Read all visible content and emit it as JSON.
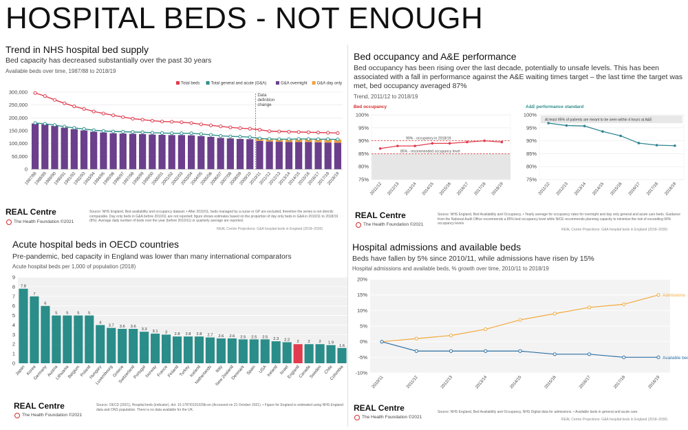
{
  "main_title": "HOSPITAL BEDS - NOT ENOUGH",
  "panels": {
    "beds": {
      "title": "Trend in NHS hospital bed supply",
      "subtitle": "Bed capacity has decreased substantially over the past 30 years",
      "note": "Available beds over time, 1987/88 to 2018/19",
      "brand": "REAL Centre",
      "brand_sub": "The Health Foundation ©2021",
      "source": "Source: NHS England, Bed availability and occupancy dataset. • After 2010/11, beds managed by a nurse or GP are excluded, therefore the series is not directly comparable. Day only beds in G&A before 2010/11 are not reported; figure shows estimates based on the proportion of day only beds in G&A in 2010/11 to 2018/19 (8%). Average daily number of beds over the year (before 2010/11) or quarterly average are reported.",
      "projections": "REAL Centre Projections: G&A hospital beds in England (2018–2030)"
    },
    "occupancy": {
      "title": "Bed occupancy and A&E performance",
      "subtitle": "Bed occupancy has been rising over the last decade, potentially to unsafe levels. This has been associated with a fall in performance against the A&E waiting times target – the last time the target was met, bed occupancy averaged 87%",
      "note": "Trend, 2011/12 to 2018/19",
      "brand": "REAL Centre",
      "brand_sub": "The Health Foundation ©2021",
      "source": "Source: NHS England, Bed Availability and Occupancy. • Yearly average for occupancy rates for overnight and day only general and acute care beds. Guidance from the National Audit Office recommends a 85% bed occupancy level while NICE recommends planning capacity to minimise the risk of exceeding 90% occupancy levels",
      "projections": "REAL Centre Projections: G&A hospital beds in England (2018–2030)"
    },
    "oecd": {
      "title": "Acute hospital beds in OECD countries",
      "subtitle": "Pre-pandemic, bed capacity in England was lower than many international comparators",
      "note": "Acute hospital beds per 1,000 of population (2018)",
      "brand": "REAL Centre",
      "brand_sub": "The Health Foundation ©2021",
      "source": "Source: OECD (2021), Hospital beds (indicator). doi: 10.1787/0191329b-en (Accessed on 21 October 2021). • Figure for England is estimated using NHS England data and ONS population. There is no data available for the UK.",
      "projections": ""
    },
    "admissions": {
      "title": "Hospital admissions and available beds",
      "subtitle": "Beds have fallen by 5% since 2010/11, while admissions have risen by 15%",
      "note": "Hospital admissions and available beds, % growth over time, 2010/11 to 2018/19",
      "brand": "REAL Centre",
      "brand_sub": "The Health Foundation ©2021",
      "source": "Source: NHS England, Bed Availability and Occupancy, NHS Digital data for admissions. • Available beds in general and acute care.",
      "projections": "REAL Centre Projections: G&A hospital beds in England (2018–2030)"
    }
  },
  "chart_data": [
    {
      "id": "beds-chart",
      "type": "bar+line",
      "categories": [
        "1987/88",
        "1988/89",
        "1989/90",
        "1990/91",
        "1991/92",
        "1992/93",
        "1993/94",
        "1994/95",
        "1995/96",
        "1996/97",
        "1997/98",
        "1998/99",
        "1999/00",
        "2000/01",
        "2001/02",
        "2002/03",
        "2003/04",
        "2004/05",
        "2005/06",
        "2006/07",
        "2007/08",
        "2008/09",
        "2009/10",
        "2010/11",
        "2011/12",
        "2012/13",
        "2013/14",
        "2014/15",
        "2015/16",
        "2016/17",
        "2017/18",
        "2018/19"
      ],
      "series": [
        {
          "name": "Total beds",
          "kind": "line",
          "color": "#e03c4e",
          "values": [
            297000,
            285000,
            270000,
            257000,
            245000,
            235000,
            225000,
            217000,
            210000,
            203000,
            197000,
            193000,
            189000,
            186000,
            185000,
            183000,
            180000,
            175000,
            171000,
            167000,
            163000,
            160000,
            158000,
            154000,
            148000,
            147000,
            146000,
            145000,
            144000,
            143000,
            142000,
            141000
          ]
        },
        {
          "name": "Total general and acute (G&A)",
          "kind": "line",
          "color": "#2d8f8a",
          "values": [
            180000,
            177000,
            172000,
            166000,
            161000,
            157000,
            152000,
            149000,
            147000,
            146000,
            145000,
            144000,
            142000,
            141000,
            140000,
            140000,
            140000,
            137000,
            134000,
            130000,
            128000,
            127000,
            125000,
            120000,
            118000,
            117000,
            117000,
            118000,
            118000,
            117000,
            117000,
            116000
          ]
        },
        {
          "name": "G&A overnight",
          "kind": "bar",
          "color": "#6b3f8c",
          "values": [
            178000,
            175000,
            169000,
            162000,
            156000,
            151000,
            146000,
            143000,
            140000,
            139000,
            138000,
            137000,
            135000,
            134000,
            133000,
            133000,
            132000,
            129000,
            126000,
            122000,
            120000,
            118000,
            117000,
            110000,
            108000,
            107000,
            106000,
            106000,
            106000,
            105000,
            104000,
            103000
          ]
        },
        {
          "name": "G&A day only",
          "kind": "bar",
          "color": "#f2a03d",
          "values": [
            0,
            0,
            0,
            0,
            0,
            0,
            0,
            0,
            0,
            0,
            0,
            0,
            0,
            0,
            0,
            0,
            0,
            0,
            0,
            0,
            0,
            0,
            0,
            10000,
            10000,
            10000,
            11000,
            12000,
            12000,
            12000,
            13000,
            13000
          ]
        }
      ],
      "ylim": [
        0,
        300000
      ],
      "yticks": [
        "300,000",
        "250,000",
        "200,000",
        "150,000",
        "100,000",
        "50,000",
        "0"
      ],
      "annotation": "Data definition change",
      "annotation_at": "2010/11",
      "legend": [
        "Total beds",
        "Total general and acute (G&A)",
        "G&A overnight",
        "G&A day only"
      ]
    },
    {
      "id": "occupancy-chart",
      "type": "line",
      "title": "Bed occupancy",
      "categories": [
        "2011/12",
        "2012/13",
        "2013/14",
        "2014/15",
        "2015/16",
        "2016/17",
        "2017/18",
        "2018/19"
      ],
      "values": [
        87,
        88,
        88,
        89,
        89,
        89.5,
        90,
        89.5
      ],
      "ylim": [
        75,
        100
      ],
      "yticks": [
        "100%",
        "95%",
        "90%",
        "85%",
        "80%",
        "75%"
      ],
      "reference_lines": [
        {
          "value": 90,
          "label": "90% - occupancy in 2018/19"
        },
        {
          "value": 85,
          "label": "85% - recommended occupancy level"
        }
      ]
    },
    {
      "id": "ae-chart",
      "type": "line",
      "title": "A&E performance standard",
      "categories": [
        "2011/12",
        "2012/13",
        "2013/14",
        "2014/15",
        "2015/16",
        "2016/17",
        "2017/18",
        "2018/19"
      ],
      "values": [
        96.8,
        95.9,
        95.7,
        93.6,
        91.9,
        89.1,
        88.3,
        88.1
      ],
      "ylim": [
        75,
        100
      ],
      "yticks": [
        "100%",
        "95%",
        "90%",
        "85%",
        "80%",
        "75%"
      ],
      "annotation": "At least 95% of patients are meant to be seen within 4 hours at A&E"
    },
    {
      "id": "oecd-chart",
      "type": "bar",
      "categories": [
        "Japan",
        "Korea",
        "Germany",
        "Austria",
        "Lithuania",
        "Belgium",
        "Poland",
        "Hungary",
        "Luxembourg",
        "Greece",
        "Switzerland",
        "Portugal",
        "Norway",
        "France",
        "Finland",
        "Turkey",
        "Iceland",
        "Netherlands",
        "Italy",
        "New Zealand",
        "Denmark",
        "Spain",
        "USA",
        "Ireland",
        "Israel",
        "England",
        "Canada",
        "Sweden",
        "Chile",
        "Colombia"
      ],
      "values": [
        7.8,
        7,
        6,
        5,
        5,
        5,
        5,
        4,
        3.7,
        3.6,
        3.6,
        3.3,
        3.1,
        3,
        2.8,
        2.8,
        2.8,
        2.7,
        2.6,
        2.6,
        2.5,
        2.5,
        2.5,
        2.3,
        2.2,
        2,
        2,
        2,
        1.9,
        1.6
      ],
      "value_labels": [
        "7.8",
        "7",
        "6",
        "5",
        "5",
        "5",
        "5",
        "4",
        "3.7",
        "3.6",
        "3.6",
        "3.3",
        "3.1",
        "3",
        "2.8",
        "2.8",
        "2.8",
        "2.7",
        "2.6",
        "2.6",
        "2.5",
        "2.5",
        "2.5",
        "2.3",
        "2.2",
        "2",
        "2",
        "2",
        "1.9",
        "1.6"
      ],
      "highlight": "England",
      "colors": {
        "default": "#2a8d89",
        "highlight": "#e03c4e"
      },
      "ylim": [
        0,
        9
      ],
      "yticks": [
        "9",
        "8",
        "7",
        "6",
        "5",
        "4",
        "3",
        "2",
        "1",
        "0"
      ]
    },
    {
      "id": "admissions-chart",
      "type": "line",
      "categories": [
        "2010/11",
        "2011/12",
        "2012/13",
        "2013/14",
        "2014/15",
        "2015/16",
        "2016/17",
        "2017/18",
        "2018/19"
      ],
      "series": [
        {
          "name": "Admissions",
          "color": "#f2a93b",
          "values": [
            0,
            1,
            2,
            4,
            7,
            9,
            11,
            12,
            15
          ]
        },
        {
          "name": "Available beds",
          "color": "#2c6fa3",
          "values": [
            0,
            -3,
            -3,
            -3,
            -3,
            -4,
            -4,
            -5,
            -5
          ]
        }
      ],
      "ylim": [
        -10,
        20
      ],
      "yticks": [
        "20%",
        "15%",
        "10%",
        "5%",
        "0%",
        "-5%",
        "-10%"
      ]
    }
  ]
}
